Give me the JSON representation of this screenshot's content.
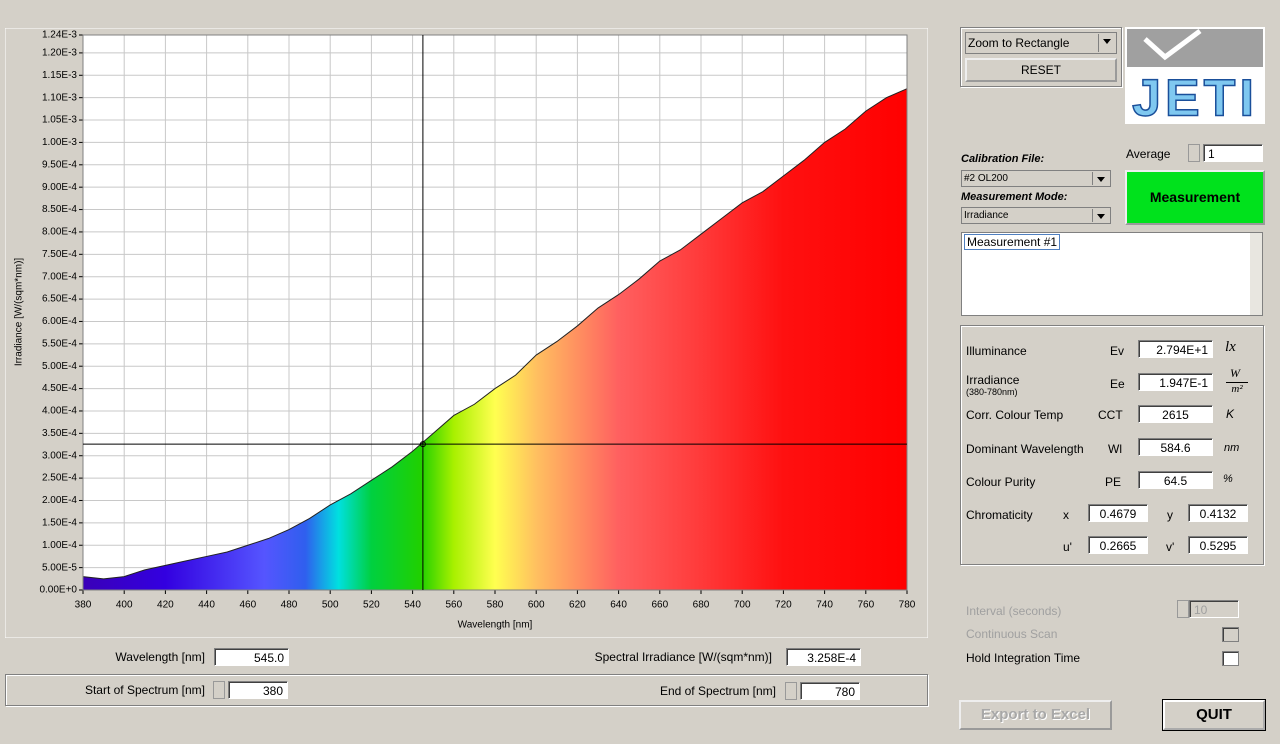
{
  "chart_data": {
    "type": "area",
    "y_label": "Irradiance [W/(sqm*nm)]",
    "x_label": "Wavelength [nm]",
    "x": [
      380,
      390,
      400,
      410,
      420,
      430,
      440,
      450,
      460,
      470,
      480,
      490,
      500,
      510,
      520,
      530,
      540,
      550,
      560,
      570,
      580,
      590,
      600,
      610,
      620,
      630,
      640,
      650,
      660,
      670,
      680,
      690,
      700,
      710,
      720,
      730,
      740,
      750,
      760,
      770,
      780
    ],
    "values": [
      3e-05,
      2.5e-05,
      3e-05,
      4.5e-05,
      5.5e-05,
      6.5e-05,
      7.5e-05,
      8.5e-05,
      0.0001,
      0.000115,
      0.000135,
      0.00016,
      0.00019,
      0.000215,
      0.000245,
      0.000275,
      0.00031,
      0.00035,
      0.00039,
      0.000415,
      0.00045,
      0.00048,
      0.000525,
      0.000555,
      0.00059,
      0.00063,
      0.00066,
      0.000695,
      0.000735,
      0.00076,
      0.000795,
      0.00083,
      0.000865,
      0.00089,
      0.000925,
      0.00096,
      0.001,
      0.00103,
      0.00107,
      0.0011,
      0.00112
    ],
    "xlim": [
      380,
      780
    ],
    "xticks": [
      380,
      400,
      420,
      440,
      460,
      480,
      500,
      520,
      540,
      560,
      580,
      600,
      620,
      640,
      660,
      680,
      700,
      720,
      740,
      760,
      780
    ],
    "ylim": [
      0,
      0.00124
    ],
    "yticks": [
      {
        "value": 0,
        "label": "0.00E+0"
      },
      {
        "value": 5e-05,
        "label": "5.00E-5"
      },
      {
        "value": 0.0001,
        "label": "1.00E-4"
      },
      {
        "value": 0.00015,
        "label": "1.50E-4"
      },
      {
        "value": 0.0002,
        "label": "2.00E-4"
      },
      {
        "value": 0.00025,
        "label": "2.50E-4"
      },
      {
        "value": 0.0003,
        "label": "3.00E-4"
      },
      {
        "value": 0.00035,
        "label": "3.50E-4"
      },
      {
        "value": 0.0004,
        "label": "4.00E-4"
      },
      {
        "value": 0.00045,
        "label": "4.50E-4"
      },
      {
        "value": 0.0005,
        "label": "5.00E-4"
      },
      {
        "value": 0.00055,
        "label": "5.50E-4"
      },
      {
        "value": 0.0006,
        "label": "6.00E-4"
      },
      {
        "value": 0.00065,
        "label": "6.50E-4"
      },
      {
        "value": 0.0007,
        "label": "7.00E-4"
      },
      {
        "value": 0.00075,
        "label": "7.50E-4"
      },
      {
        "value": 0.0008,
        "label": "8.00E-4"
      },
      {
        "value": 0.00085,
        "label": "8.50E-4"
      },
      {
        "value": 0.0009,
        "label": "9.00E-4"
      },
      {
        "value": 0.00095,
        "label": "9.50E-4"
      },
      {
        "value": 0.001,
        "label": "1.00E-3"
      },
      {
        "value": 0.00105,
        "label": "1.05E-3"
      },
      {
        "value": 0.0011,
        "label": "1.10E-3"
      },
      {
        "value": 0.00115,
        "label": "1.15E-3"
      },
      {
        "value": 0.0012,
        "label": "1.20E-3"
      },
      {
        "value": 0.00124,
        "label": "1.24E-3"
      }
    ],
    "grid": true,
    "cursor": {
      "x": 545,
      "y": 0.0003258
    }
  },
  "cursor_panel": {
    "wavelength_label": "Wavelength [nm]",
    "wavelength": "545.0",
    "irradiance_label": "Spectral Irradiance [W/(sqm*nm)]",
    "irradiance": "3.258E-4",
    "start_label": "Start of Spectrum [nm]",
    "start": "380",
    "end_label": "End of Spectrum [nm]",
    "end": "780"
  },
  "toolbar": {
    "zoom_mode": "Zoom to Rectangle",
    "reset": "RESET"
  },
  "logo": "JETI",
  "settings": {
    "calibration_label": "Calibration File:",
    "calibration_file": "#2  OL200",
    "mode_label": "Measurement Mode:",
    "mode": "Irradiance",
    "average_label": "Average",
    "average": "1",
    "measure_button": "Measurement",
    "log": "Measurement #1"
  },
  "results": {
    "illuminance": {
      "label": "Illuminance",
      "symbol": "Ev",
      "value": "2.794E+1",
      "unit": "lx"
    },
    "irradiance": {
      "label": "Irradiance",
      "sublabel": "(380-780nm)",
      "symbol": "Ee",
      "value": "1.947E-1",
      "unit_num": "W",
      "unit_den": "m²"
    },
    "cct": {
      "label": "Corr. Colour Temp",
      "symbol": "CCT",
      "value": "2615",
      "unit": "K"
    },
    "dominant": {
      "label": "Dominant Wavelength",
      "symbol": "Wl",
      "value": "584.6",
      "unit": "nm"
    },
    "purity": {
      "label": "Colour Purity",
      "symbol": "PE",
      "value": "64.5",
      "unit": "%"
    },
    "chromaticity": {
      "label": "Chromaticity",
      "x_label": "x",
      "x": "0.4679",
      "y_label": "y",
      "y": "0.4132",
      "u_label": "u'",
      "u": "0.2665",
      "v_label": "v'",
      "v": "0.5295"
    }
  },
  "scan": {
    "interval_label": "Interval  (seconds)",
    "interval": "10",
    "continuous_label": "Continuous Scan",
    "hold_label": "Hold Integration Time"
  },
  "buttons": {
    "export": "Export to Excel",
    "quit": "QUIT"
  }
}
